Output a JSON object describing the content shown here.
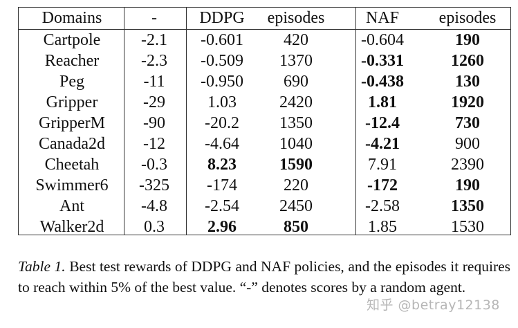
{
  "table": {
    "headers": [
      "Domains",
      "-",
      "DDPG",
      "episodes",
      "NAF",
      "episodes"
    ],
    "rows": [
      {
        "cells": [
          "Cartpole",
          "-2.1",
          "-0.601",
          "420",
          "-0.604",
          "190"
        ],
        "bold": [
          false,
          false,
          false,
          false,
          false,
          true
        ]
      },
      {
        "cells": [
          "Reacher",
          "-2.3",
          "-0.509",
          "1370",
          "-0.331",
          "1260"
        ],
        "bold": [
          false,
          false,
          false,
          false,
          true,
          true
        ]
      },
      {
        "cells": [
          "Peg",
          "-11",
          "-0.950",
          "690",
          "-0.438",
          "130"
        ],
        "bold": [
          false,
          false,
          false,
          false,
          true,
          true
        ]
      },
      {
        "cells": [
          "Gripper",
          "-29",
          "1.03",
          "2420",
          "1.81",
          "1920"
        ],
        "bold": [
          false,
          false,
          false,
          false,
          true,
          true
        ]
      },
      {
        "cells": [
          "GripperM",
          "-90",
          "-20.2",
          "1350",
          "-12.4",
          "730"
        ],
        "bold": [
          false,
          false,
          false,
          false,
          true,
          true
        ]
      },
      {
        "cells": [
          "Canada2d",
          "-12",
          "-4.64",
          "1040",
          "-4.21",
          "900"
        ],
        "bold": [
          false,
          false,
          false,
          false,
          true,
          false
        ]
      },
      {
        "cells": [
          "Cheetah",
          "-0.3",
          "8.23",
          "1590",
          "7.91",
          "2390"
        ],
        "bold": [
          false,
          false,
          true,
          true,
          false,
          false
        ]
      },
      {
        "cells": [
          "Swimmer6",
          "-325",
          "-174",
          "220",
          "-172",
          "190"
        ],
        "bold": [
          false,
          false,
          false,
          false,
          true,
          true
        ]
      },
      {
        "cells": [
          "Ant",
          "-4.8",
          "-2.54",
          "2450",
          "-2.58",
          "1350"
        ],
        "bold": [
          false,
          false,
          false,
          false,
          false,
          true
        ]
      },
      {
        "cells": [
          "Walker2d",
          "0.3",
          "2.96",
          "850",
          "1.85",
          "1530"
        ],
        "bold": [
          false,
          false,
          true,
          true,
          false,
          false
        ]
      }
    ]
  },
  "caption": {
    "label": "Table 1.",
    "text": " Best test rewards of DDPG and NAF policies, and the episodes it requires to reach within 5% of the best value. “-” denotes scores by a random agent."
  },
  "watermark": "知乎 @betray12138"
}
